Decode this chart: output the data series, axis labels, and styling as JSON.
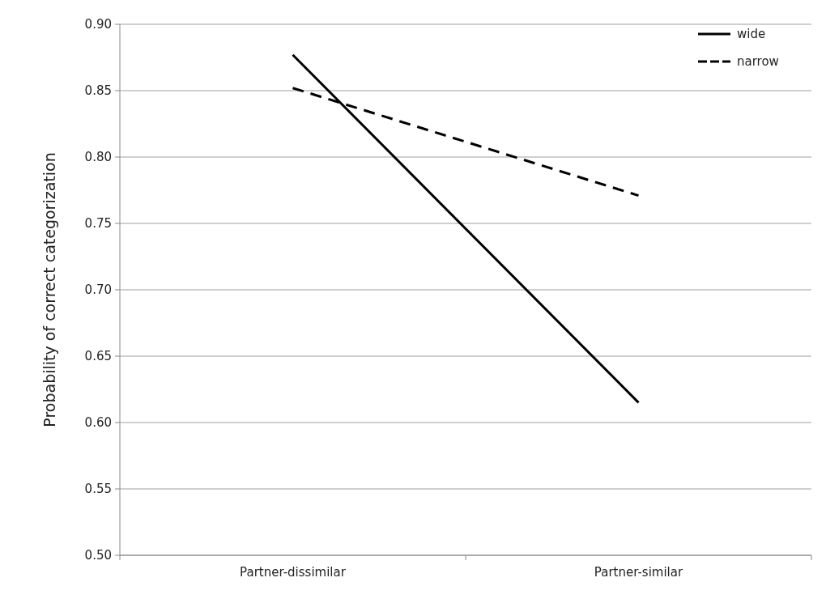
{
  "chart_data": {
    "type": "line",
    "ylabel": "Probability of correct categorization",
    "categories": [
      "Partner-dissimilar",
      "Partner-similar"
    ],
    "series": [
      {
        "name": "wide",
        "color": "#000000",
        "values": [
          0.877,
          0.615
        ],
        "line_style": "solid"
      },
      {
        "name": "narrow",
        "color": "#000000",
        "values": [
          0.852,
          0.771
        ],
        "line_style": "dashed"
      }
    ],
    "ylim": [
      0.5,
      0.9
    ],
    "yticks": [
      {
        "value": 0.5,
        "label": "0.50"
      },
      {
        "value": 0.55,
        "label": "0.55"
      },
      {
        "value": 0.6,
        "label": "0.60"
      },
      {
        "value": 0.65,
        "label": "0.65"
      },
      {
        "value": 0.7,
        "label": "0.70"
      },
      {
        "value": 0.75,
        "label": "0.75"
      },
      {
        "value": 0.8,
        "label": "0.80"
      },
      {
        "value": 0.85,
        "label": "0.85"
      },
      {
        "value": 0.9,
        "label": "0.90"
      }
    ],
    "grid": "y",
    "legend": "top right",
    "marker": "none"
  }
}
